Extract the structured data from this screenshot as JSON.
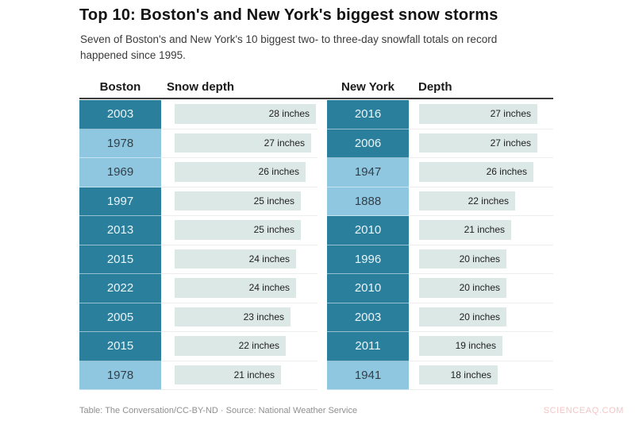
{
  "header": {
    "title": "Top 10: Boston's and New York's biggest snow storms",
    "subtitle": "Seven of Boston's and New York's 10 biggest two- to three-day snowfall totals on record happened since 1995."
  },
  "table": {
    "columns": [
      "Boston",
      "Snow depth",
      "New York",
      "Depth"
    ]
  },
  "chart_data": {
    "type": "bar",
    "title": "Top 10: Boston's and New York's biggest snow storms",
    "unit": "inches",
    "orientation": "horizontal",
    "legend_position": "none",
    "grid": false,
    "value_axis_range": [
      0,
      28
    ],
    "series": [
      {
        "name": "Boston",
        "depth_column_label": "Snow depth",
        "rows": [
          {
            "year": "2003",
            "value": 28,
            "label": "28 inches",
            "shade": "dark"
          },
          {
            "year": "1978",
            "value": 27,
            "label": "27 inches",
            "shade": "light"
          },
          {
            "year": "1969",
            "value": 26,
            "label": "26 inches",
            "shade": "light"
          },
          {
            "year": "1997",
            "value": 25,
            "label": "25 inches",
            "shade": "dark"
          },
          {
            "year": "2013",
            "value": 25,
            "label": "25 inches",
            "shade": "dark"
          },
          {
            "year": "2015",
            "value": 24,
            "label": "24 inches",
            "shade": "dark"
          },
          {
            "year": "2022",
            "value": 24,
            "label": "24 inches",
            "shade": "dark"
          },
          {
            "year": "2005",
            "value": 23,
            "label": "23 inches",
            "shade": "dark"
          },
          {
            "year": "2015",
            "value": 22,
            "label": "22 inches",
            "shade": "dark"
          },
          {
            "year": "1978",
            "value": 21,
            "label": "21 inches",
            "shade": "light"
          }
        ]
      },
      {
        "name": "New York",
        "depth_column_label": "Depth",
        "rows": [
          {
            "year": "2016",
            "value": 27,
            "label": "27 inches",
            "shade": "dark"
          },
          {
            "year": "2006",
            "value": 27,
            "label": "27 inches",
            "shade": "dark"
          },
          {
            "year": "1947",
            "value": 26,
            "label": "26 inches",
            "shade": "light"
          },
          {
            "year": "1888",
            "value": 22,
            "label": "22 inches",
            "shade": "light"
          },
          {
            "year": "2010",
            "value": 21,
            "label": "21 inches",
            "shade": "dark"
          },
          {
            "year": "1996",
            "value": 20,
            "label": "20 inches",
            "shade": "dark"
          },
          {
            "year": "2010",
            "value": 20,
            "label": "20 inches",
            "shade": "dark"
          },
          {
            "year": "2003",
            "value": 20,
            "label": "20 inches",
            "shade": "dark"
          },
          {
            "year": "2011",
            "value": 19,
            "label": "19 inches",
            "shade": "dark"
          },
          {
            "year": "1941",
            "value": 18,
            "label": "18 inches",
            "shade": "light"
          }
        ]
      }
    ]
  },
  "colors": {
    "year_cell_dark": "#2a7f9d",
    "year_cell_light": "#8fc7e1",
    "bar_fill": "#dce8e5",
    "header_rule": "#3c3c3c",
    "watermark_pink": "#f2c6c5"
  },
  "footer": {
    "credit": "Table: The Conversation/CC-BY-ND · Source: National Weather Service",
    "watermark": "SCIENCEAQ.COM"
  }
}
